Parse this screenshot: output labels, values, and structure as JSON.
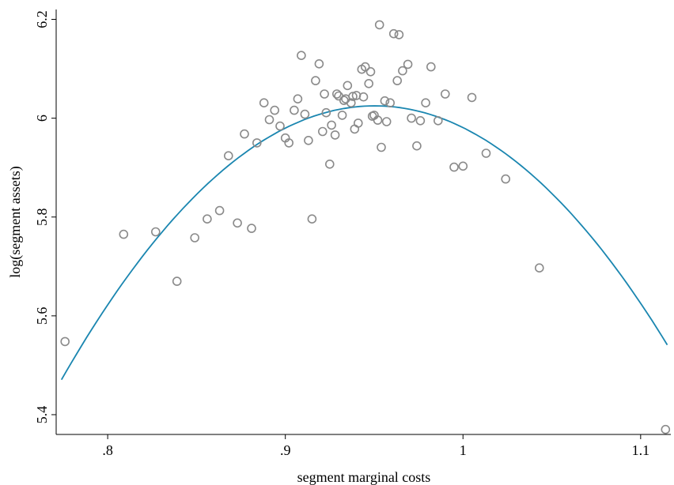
{
  "chart_data": {
    "type": "scatter",
    "xlabel": "segment marginal costs",
    "ylabel": "log(segment assets)",
    "xlim": [
      0.771,
      1.117
    ],
    "ylim": [
      5.36,
      6.22
    ],
    "xticks": [
      0.8,
      0.9,
      1.0,
      1.1
    ],
    "xtick_labels": [
      ".8",
      ".9",
      "1",
      "1.1"
    ],
    "yticks": [
      5.4,
      5.6,
      5.8,
      6.0,
      6.2
    ],
    "ytick_labels": [
      "5.4",
      "5.6",
      "5.8",
      "6",
      "6.2"
    ],
    "grid": false,
    "colors": {
      "points": "#8a8a8a",
      "fit_line": "#1a86b0"
    },
    "points": [
      {
        "x": 0.776,
        "y": 5.548
      },
      {
        "x": 0.809,
        "y": 5.765
      },
      {
        "x": 0.827,
        "y": 5.77
      },
      {
        "x": 0.839,
        "y": 5.67
      },
      {
        "x": 0.849,
        "y": 5.758
      },
      {
        "x": 0.856,
        "y": 5.796
      },
      {
        "x": 0.863,
        "y": 5.813
      },
      {
        "x": 0.868,
        "y": 5.924
      },
      {
        "x": 0.873,
        "y": 5.788
      },
      {
        "x": 0.877,
        "y": 5.968
      },
      {
        "x": 0.881,
        "y": 5.777
      },
      {
        "x": 0.884,
        "y": 5.95
      },
      {
        "x": 0.888,
        "y": 6.031
      },
      {
        "x": 0.891,
        "y": 5.997
      },
      {
        "x": 0.894,
        "y": 6.016
      },
      {
        "x": 0.897,
        "y": 5.984
      },
      {
        "x": 0.9,
        "y": 5.96
      },
      {
        "x": 0.902,
        "y": 5.95
      },
      {
        "x": 0.905,
        "y": 6.016
      },
      {
        "x": 0.907,
        "y": 6.039
      },
      {
        "x": 0.909,
        "y": 6.127
      },
      {
        "x": 0.911,
        "y": 6.008
      },
      {
        "x": 0.913,
        "y": 5.955
      },
      {
        "x": 0.915,
        "y": 5.796
      },
      {
        "x": 0.917,
        "y": 6.076
      },
      {
        "x": 0.919,
        "y": 6.11
      },
      {
        "x": 0.921,
        "y": 5.973
      },
      {
        "x": 0.922,
        "y": 6.049
      },
      {
        "x": 0.923,
        "y": 6.011
      },
      {
        "x": 0.925,
        "y": 5.907
      },
      {
        "x": 0.926,
        "y": 5.986
      },
      {
        "x": 0.928,
        "y": 5.966
      },
      {
        "x": 0.929,
        "y": 6.049
      },
      {
        "x": 0.93,
        "y": 6.045
      },
      {
        "x": 0.932,
        "y": 6.006
      },
      {
        "x": 0.933,
        "y": 6.036
      },
      {
        "x": 0.934,
        "y": 6.039
      },
      {
        "x": 0.935,
        "y": 6.066
      },
      {
        "x": 0.937,
        "y": 6.031
      },
      {
        "x": 0.938,
        "y": 6.044
      },
      {
        "x": 0.939,
        "y": 5.978
      },
      {
        "x": 0.94,
        "y": 6.046
      },
      {
        "x": 0.941,
        "y": 5.99
      },
      {
        "x": 0.943,
        "y": 6.099
      },
      {
        "x": 0.944,
        "y": 6.043
      },
      {
        "x": 0.945,
        "y": 6.104
      },
      {
        "x": 0.947,
        "y": 6.07
      },
      {
        "x": 0.948,
        "y": 6.094
      },
      {
        "x": 0.949,
        "y": 6.004
      },
      {
        "x": 0.95,
        "y": 6.006
      },
      {
        "x": 0.952,
        "y": 5.996
      },
      {
        "x": 0.953,
        "y": 6.189
      },
      {
        "x": 0.954,
        "y": 5.941
      },
      {
        "x": 0.956,
        "y": 6.035
      },
      {
        "x": 0.957,
        "y": 5.993
      },
      {
        "x": 0.959,
        "y": 6.031
      },
      {
        "x": 0.961,
        "y": 6.171
      },
      {
        "x": 0.963,
        "y": 6.076
      },
      {
        "x": 0.964,
        "y": 6.169
      },
      {
        "x": 0.966,
        "y": 6.096
      },
      {
        "x": 0.969,
        "y": 6.109
      },
      {
        "x": 0.971,
        "y": 6.0
      },
      {
        "x": 0.974,
        "y": 5.944
      },
      {
        "x": 0.976,
        "y": 5.995
      },
      {
        "x": 0.979,
        "y": 6.031
      },
      {
        "x": 0.982,
        "y": 6.104
      },
      {
        "x": 0.986,
        "y": 5.995
      },
      {
        "x": 0.99,
        "y": 6.049
      },
      {
        "x": 0.995,
        "y": 5.901
      },
      {
        "x": 1.0,
        "y": 5.903
      },
      {
        "x": 1.005,
        "y": 6.042
      },
      {
        "x": 1.013,
        "y": 5.929
      },
      {
        "x": 1.024,
        "y": 5.877
      },
      {
        "x": 1.043,
        "y": 5.697
      },
      {
        "x": 1.114,
        "y": 5.37
      }
    ],
    "fit": {
      "type": "quadratic",
      "x_range": [
        0.774,
        1.115
      ],
      "vertex": [
        0.9503,
        6.025
      ],
      "a": -17.83
    }
  }
}
